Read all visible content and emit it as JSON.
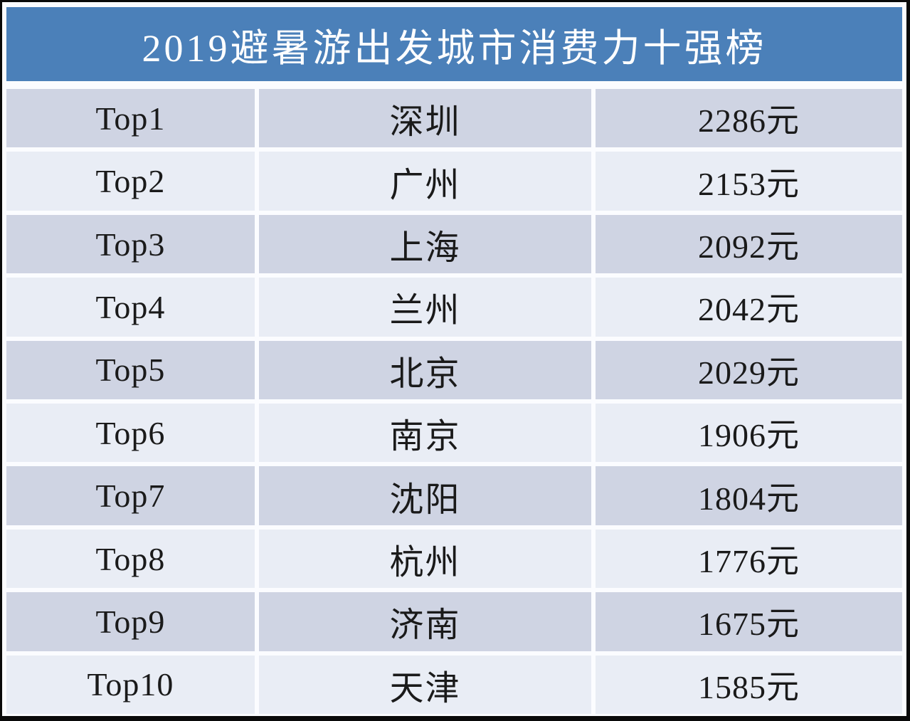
{
  "title": "2019避暑游出发城市消费力十强榜",
  "colors": {
    "header_blue": "#4b80b9",
    "row_dark": "#cfd4e3",
    "row_light": "#e9edf5",
    "canvas_white": "#fbfcff",
    "frame_black": "#0a0a0a",
    "title_text": "#ffffff",
    "body_text": "#1a1a1a"
  },
  "table": {
    "rows": [
      {
        "rank": "Top1",
        "city": "深圳",
        "price": "2286元"
      },
      {
        "rank": "Top2",
        "city": "广州",
        "price": "2153元"
      },
      {
        "rank": "Top3",
        "city": "上海",
        "price": "2092元"
      },
      {
        "rank": "Top4",
        "city": "兰州",
        "price": "2042元"
      },
      {
        "rank": "Top5",
        "city": "北京",
        "price": "2029元"
      },
      {
        "rank": "Top6",
        "city": "南京",
        "price": "1906元"
      },
      {
        "rank": "Top7",
        "city": "沈阳",
        "price": "1804元"
      },
      {
        "rank": "Top8",
        "city": "杭州",
        "price": "1776元"
      },
      {
        "rank": "Top9",
        "city": "济南",
        "price": "1675元"
      },
      {
        "rank": "Top10",
        "city": "天津",
        "price": "1585元"
      }
    ]
  },
  "chart_data": {
    "type": "table",
    "title": "2019避暑游出发城市消费力十强榜",
    "rows": [
      [
        "Top1",
        "深圳",
        "2286元"
      ],
      [
        "Top2",
        "广州",
        "2153元"
      ],
      [
        "Top3",
        "上海",
        "2092元"
      ],
      [
        "Top4",
        "兰州",
        "2042元"
      ],
      [
        "Top5",
        "北京",
        "2029元"
      ],
      [
        "Top6",
        "南京",
        "1906元"
      ],
      [
        "Top7",
        "沈阳",
        "1804元"
      ],
      [
        "Top8",
        "杭州",
        "1776元"
      ],
      [
        "Top9",
        "济南",
        "1675元"
      ],
      [
        "Top10",
        "天津",
        "1585元"
      ]
    ],
    "cities": [
      "深圳",
      "广州",
      "上海",
      "兰州",
      "北京",
      "南京",
      "沈阳",
      "杭州",
      "济南",
      "天津"
    ],
    "values_yuan": [
      2286,
      2153,
      2092,
      2042,
      2029,
      1906,
      1804,
      1776,
      1675,
      1585
    ],
    "unit": "元"
  }
}
